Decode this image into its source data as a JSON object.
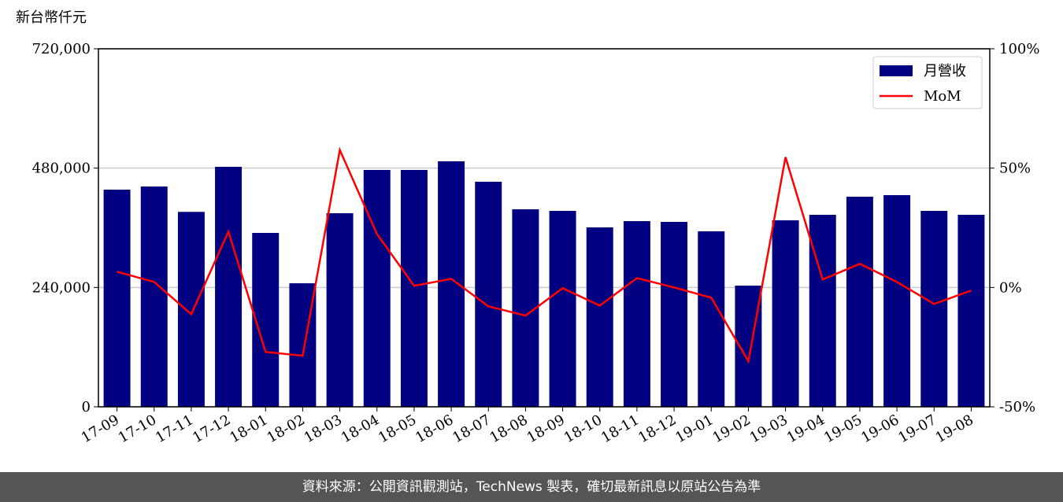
{
  "chart_data": {
    "type": "bar-line",
    "y_label": "新台幣仟元",
    "categories": [
      "17-09",
      "17-10",
      "17-11",
      "17-12",
      "18-01",
      "18-02",
      "18-03",
      "18-04",
      "18-05",
      "18-06",
      "18-07",
      "18-08",
      "18-09",
      "18-10",
      "18-11",
      "18-12",
      "19-01",
      "19-02",
      "19-03",
      "19-04",
      "19-05",
      "19-06",
      "19-07",
      "19-08"
    ],
    "series": [
      {
        "name": "月營收",
        "type": "bar",
        "color": "#000080",
        "values": [
          436700,
          443000,
          392000,
          482600,
          349700,
          248400,
          389300,
          476300,
          476300,
          493700,
          452600,
          397200,
          394000,
          360800,
          373400,
          371900,
          352900,
          243700,
          375000,
          386100,
          422500,
          425700,
          394000,
          386100
        ]
      },
      {
        "name": "MoM",
        "type": "line",
        "axis": "y2",
        "color": "#ff0000",
        "values": [
          6.6,
          2.3,
          -11.2,
          23.4,
          -27,
          -28.6,
          57.6,
          22.4,
          0.7,
          3.6,
          -7.9,
          -11.8,
          -0.3,
          -7.6,
          3.9,
          0,
          -4.3,
          -30.9,
          54.6,
          3.3,
          9.9,
          2.3,
          -6.9,
          -1.3
        ]
      }
    ],
    "ylim": [
      0,
      720000
    ],
    "yticks": [
      0,
      {
        "value": 240000,
        "label": "240,000"
      },
      {
        "value": 480000,
        "label": "480,000"
      },
      {
        "value": 720000,
        "label": "720,000"
      }
    ],
    "y2lim": [
      -50,
      100
    ],
    "y2ticks": [
      {
        "value": -50,
        "label": "-50%"
      },
      {
        "value": 0,
        "label": "0%"
      },
      {
        "value": 50,
        "label": "50%"
      },
      {
        "value": 100,
        "label": "100%"
      }
    ],
    "grid": true,
    "legend": "upper right",
    "source": "資料來源：公開資訊觀測站，TechNews 製表，確切最新訊息以原站公告為準"
  }
}
